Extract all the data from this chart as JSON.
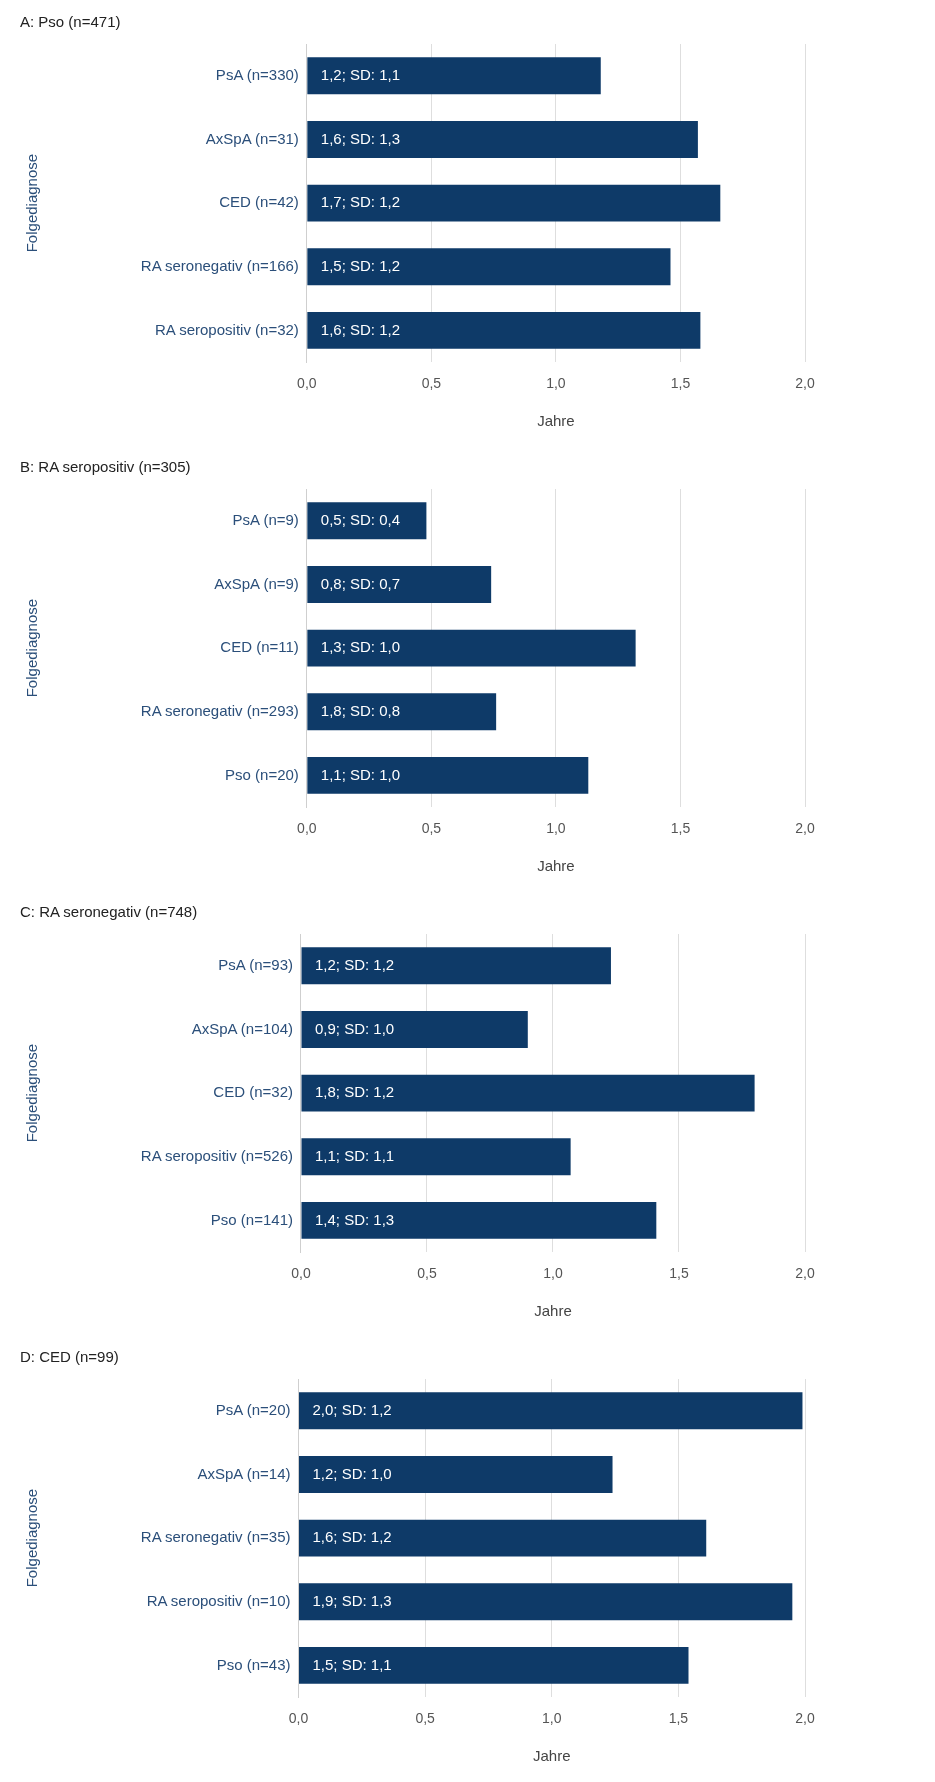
{
  "chart_data": [
    {
      "type": "bar",
      "orientation": "horizontal",
      "title": "A: Pso (n=471)",
      "xlabel": "Jahre",
      "ylabel": "Folgediagnose",
      "categories": [
        "PsA (n=330)",
        "AxSpA (n=31)",
        "CED (n=42)",
        "RA seronegativ (n=166)",
        "RA seropositiv (n=32)"
      ],
      "values": [
        1.18,
        1.57,
        1.66,
        1.46,
        1.58
      ],
      "value_labels": [
        "1,2; SD: 1,1",
        "1,6; SD: 1,3",
        "1,7; SD: 1,2",
        "1,5; SD: 1,2",
        "1,6; SD: 1,2"
      ],
      "color": "#0e3a68",
      "xlim": [
        0,
        2
      ],
      "xticks": [
        {
          "value": 0,
          "label": "0,0"
        },
        {
          "value": 0.5,
          "label": "0,5"
        },
        {
          "value": 1,
          "label": "1,0"
        },
        {
          "value": 1.5,
          "label": "1,5"
        },
        {
          "value": 2,
          "label": "2,0"
        }
      ],
      "grid": "x",
      "legend": false
    },
    {
      "type": "bar",
      "orientation": "horizontal",
      "title": "B: RA seropositiv (n=305)",
      "xlabel": "Jahre",
      "ylabel": "Folgediagnose",
      "categories": [
        "PsA (n=9)",
        "AxSpA (n=9)",
        "CED (n=11)",
        "RA seronegativ (n=293)",
        "Pso (n=20)"
      ],
      "values": [
        0.48,
        0.74,
        1.32,
        0.76,
        1.13
      ],
      "value_labels": [
        "0,5; SD: 0,4",
        "0,8; SD: 0,7",
        "1,3; SD: 1,0",
        "1,8; SD: 0,8",
        "1,1; SD: 1,0"
      ],
      "color": "#0e3a68",
      "xlim": [
        0,
        2
      ],
      "xticks": [
        {
          "value": 0,
          "label": "0,0"
        },
        {
          "value": 0.5,
          "label": "0,5"
        },
        {
          "value": 1,
          "label": "1,0"
        },
        {
          "value": 1.5,
          "label": "1,5"
        },
        {
          "value": 2,
          "label": "2,0"
        }
      ],
      "grid": "x",
      "legend": false
    },
    {
      "type": "bar",
      "orientation": "horizontal",
      "title": "C: RA seronegativ (n=748)",
      "xlabel": "Jahre",
      "ylabel": "Folgediagnose",
      "categories": [
        "PsA (n=93)",
        "AxSpA (n=104)",
        "CED (n=32)",
        "RA seropositiv (n=526)",
        "Pso (n=141)"
      ],
      "values": [
        1.23,
        0.9,
        1.8,
        1.07,
        1.41
      ],
      "value_labels": [
        "1,2; SD: 1,2",
        "0,9; SD: 1,0",
        "1,8; SD: 1,2",
        "1,1; SD: 1,1",
        "1,4; SD: 1,3"
      ],
      "color": "#0e3a68",
      "xlim": [
        0,
        2
      ],
      "xticks": [
        {
          "value": 0,
          "label": "0,0"
        },
        {
          "value": 0.5,
          "label": "0,5"
        },
        {
          "value": 1,
          "label": "1,0"
        },
        {
          "value": 1.5,
          "label": "1,5"
        },
        {
          "value": 2,
          "label": "2,0"
        }
      ],
      "grid": "x",
      "legend": false
    },
    {
      "type": "bar",
      "orientation": "horizontal",
      "title": "D: CED (n=99)",
      "xlabel": "Jahre",
      "ylabel": "Folgediagnose",
      "categories": [
        "PsA (n=20)",
        "AxSpA (n=14)",
        "RA seronegativ (n=35)",
        "RA seropositiv (n=10)",
        "Pso (n=43)"
      ],
      "values": [
        1.99,
        1.24,
        1.61,
        1.95,
        1.54
      ],
      "value_labels": [
        "2,0; SD: 1,2",
        "1,2; SD: 1,0",
        "1,6; SD: 1,2",
        "1,9; SD: 1,3",
        "1,5; SD: 1,1"
      ],
      "color": "#0e3a68",
      "xlim": [
        0,
        2
      ],
      "xticks": [
        {
          "value": 0,
          "label": "0,0"
        },
        {
          "value": 0.5,
          "label": "0,5"
        },
        {
          "value": 1,
          "label": "1,0"
        },
        {
          "value": 1.5,
          "label": "1,5"
        },
        {
          "value": 2,
          "label": "2,0"
        }
      ],
      "grid": "x",
      "legend": false
    }
  ]
}
